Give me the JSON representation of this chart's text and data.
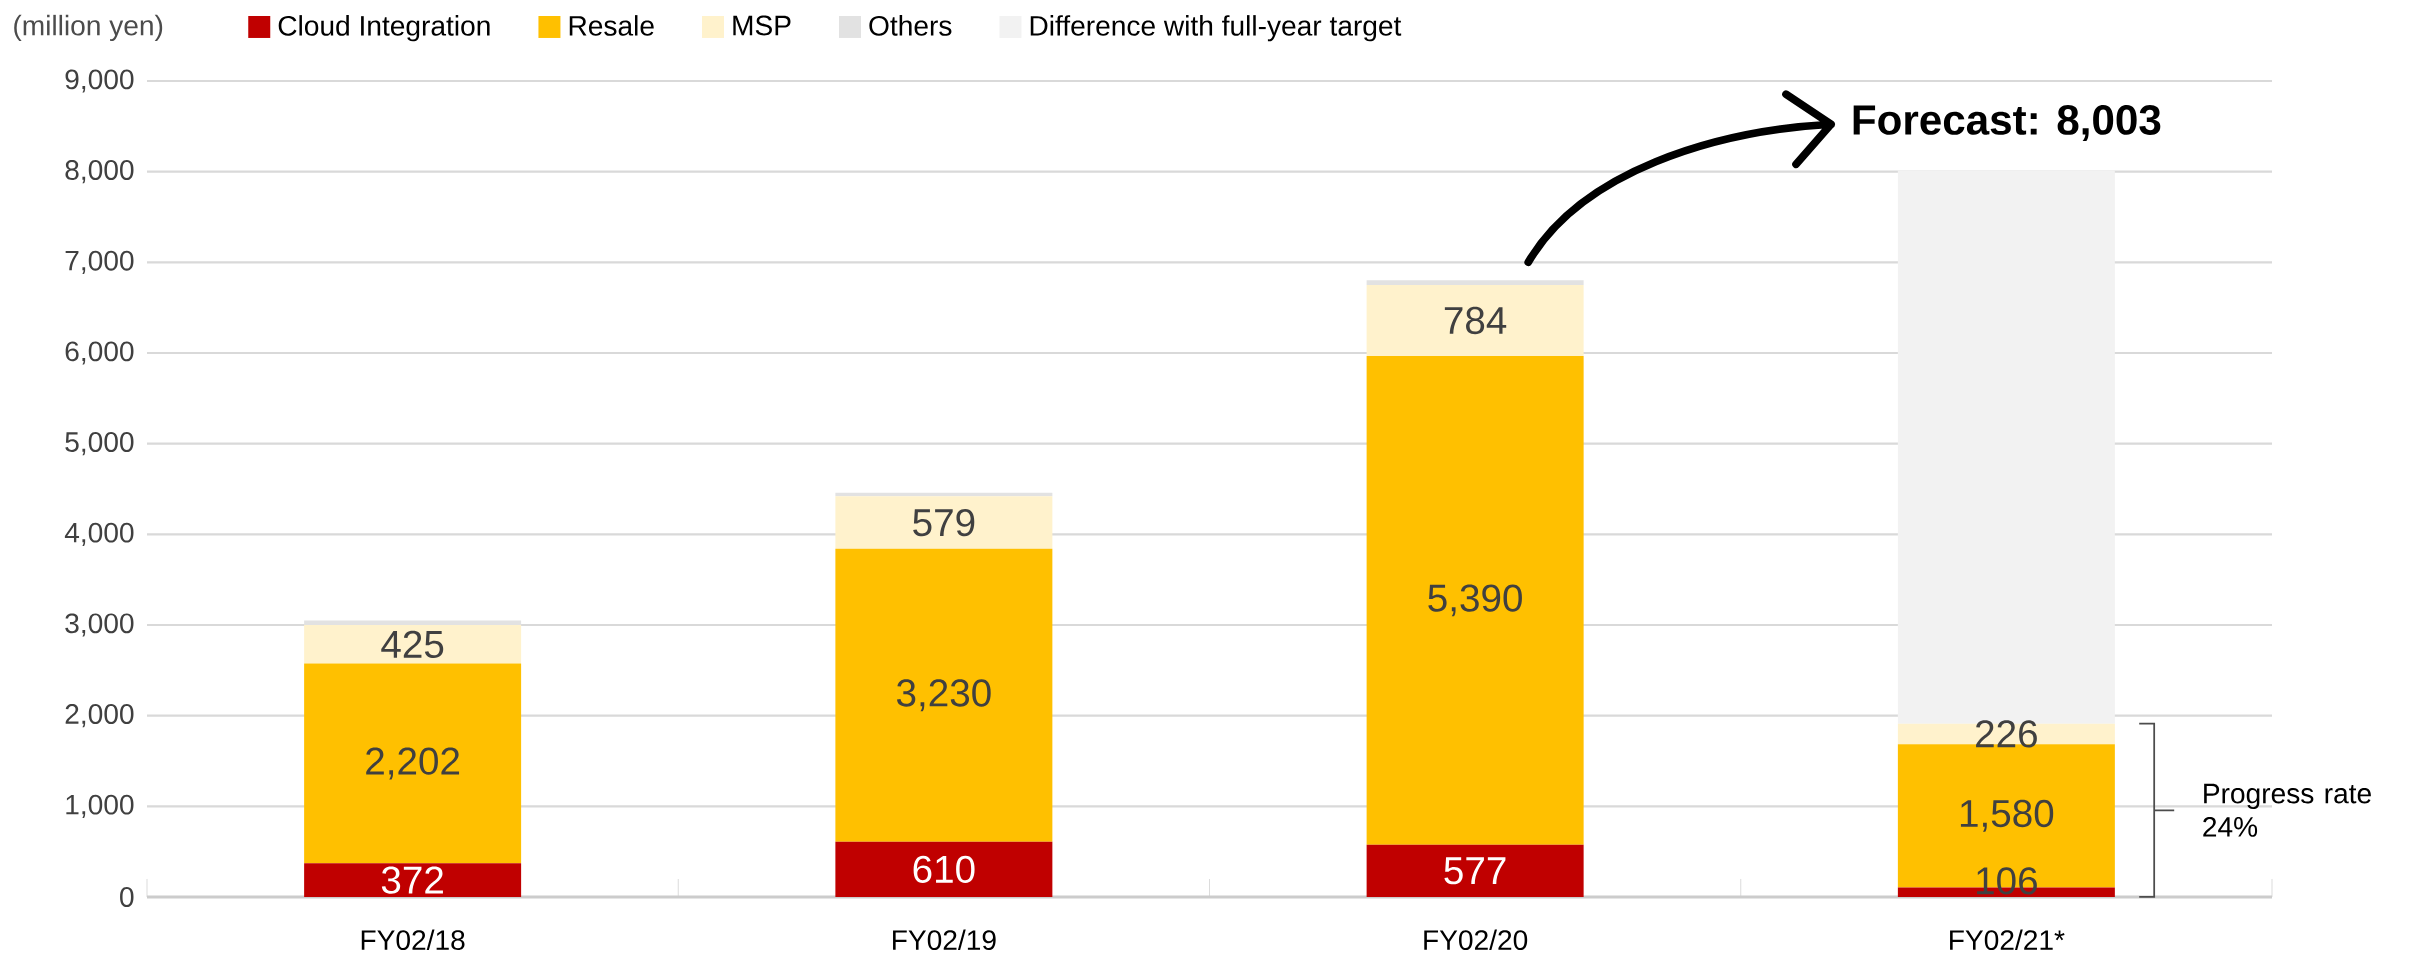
{
  "chart_data": {
    "type": "bar",
    "stacked": true,
    "ylabel": "(million yen)",
    "categories": [
      "FY02/18",
      "FY02/19",
      "FY02/20",
      "FY02/21*"
    ],
    "series": [
      {
        "name": "Cloud Integration",
        "color": "#c00000",
        "values": [
          372,
          610,
          577,
          106
        ],
        "value_labels": [
          "372",
          "610",
          "577",
          "106"
        ]
      },
      {
        "name": "Resale",
        "color": "#ffc000",
        "values": [
          2202,
          3230,
          5390,
          1580
        ],
        "value_labels": [
          "2,202",
          "3,230",
          "5,390",
          "1,580"
        ]
      },
      {
        "name": "MSP",
        "color": "#fff2cc",
        "values": [
          425,
          579,
          784,
          226
        ],
        "value_labels": [
          "425",
          "579",
          "784",
          "226"
        ]
      },
      {
        "name": "Others",
        "color": "#e2e2e2",
        "values": [
          50,
          40,
          50,
          null
        ]
      },
      {
        "name": "Difference with full-year target",
        "color": "#f2f2f2",
        "values": [
          null,
          null,
          null,
          6100
        ]
      }
    ],
    "ylim": [
      0,
      9000
    ],
    "yticks": [
      0,
      {
        "value": 1000,
        "label": "1,000"
      },
      {
        "value": 2000,
        "label": "2,000"
      },
      {
        "value": 3000,
        "label": "3,000"
      },
      {
        "value": 4000,
        "label": "4,000"
      },
      {
        "value": 5000,
        "label": "5,000"
      },
      {
        "value": 6000,
        "label": "6,000"
      },
      {
        "value": 7000,
        "label": "7,000"
      },
      {
        "value": 8000,
        "label": "8,000"
      },
      {
        "value": 9000,
        "label": "9,000"
      }
    ],
    "grid": "y",
    "legend": "top left",
    "annotations": [
      {
        "text": "Forecast: 8,003",
        "x": "FY02/21*",
        "y": 8003
      },
      "Progress rate\n24%"
    ]
  }
}
